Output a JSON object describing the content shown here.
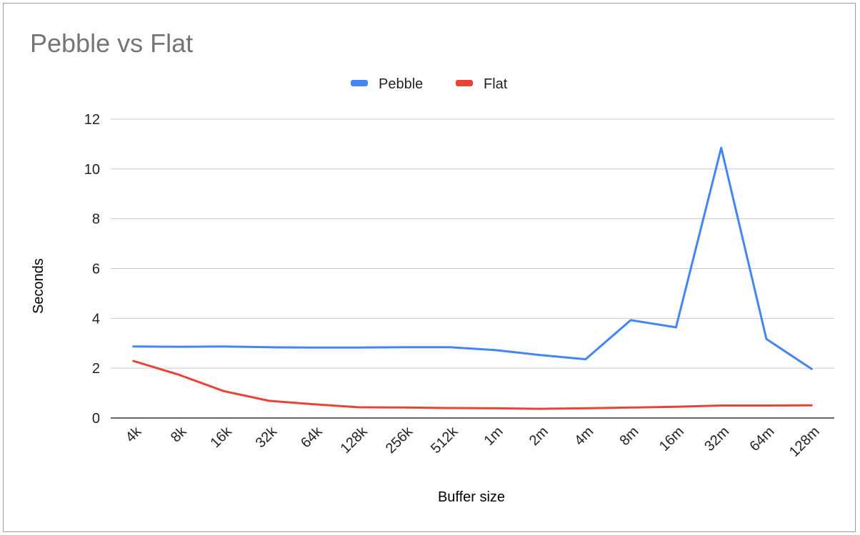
{
  "chart_data": {
    "type": "line",
    "title": "Pebble vs Flat",
    "xlabel": "Buffer size",
    "ylabel": "Seconds",
    "ylim": [
      0,
      12
    ],
    "yticks": [
      0,
      2,
      4,
      6,
      8,
      10,
      12
    ],
    "grid": true,
    "legend_position": "top",
    "categories": [
      "4k",
      "8k",
      "16k",
      "32k",
      "64k",
      "128k",
      "256k",
      "512k",
      "1m",
      "2m",
      "4m",
      "8m",
      "16m",
      "32m",
      "64m",
      "128m"
    ],
    "series": [
      {
        "name": "Pebble",
        "color": "#4285f4",
        "values": [
          2.87,
          2.86,
          2.87,
          2.84,
          2.83,
          2.83,
          2.84,
          2.84,
          2.73,
          2.53,
          2.36,
          3.93,
          3.64,
          10.85,
          3.17,
          1.97
        ]
      },
      {
        "name": "Flat",
        "color": "#ea4335",
        "values": [
          2.29,
          1.74,
          1.08,
          0.69,
          0.55,
          0.43,
          0.42,
          0.4,
          0.39,
          0.37,
          0.39,
          0.42,
          0.45,
          0.5,
          0.5,
          0.51
        ]
      }
    ]
  }
}
